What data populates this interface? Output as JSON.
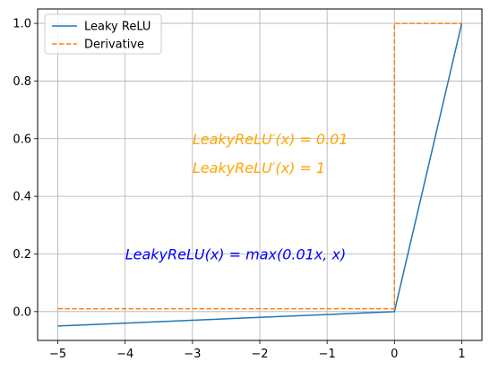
{
  "chart_data": {
    "type": "line",
    "xlim": [
      -5.3,
      1.3
    ],
    "ylim": [
      -0.1,
      1.05
    ],
    "x_ticks": [
      "−5",
      "−4",
      "−3",
      "−2",
      "−1",
      "0",
      "1"
    ],
    "x_tick_values": [
      -5,
      -4,
      -3,
      -2,
      -1,
      0,
      1
    ],
    "y_ticks": [
      "0.0",
      "0.2",
      "0.4",
      "0.6",
      "0.8",
      "1.0"
    ],
    "y_tick_values": [
      0.0,
      0.2,
      0.4,
      0.6,
      0.8,
      1.0
    ],
    "grid": true,
    "legend_position": "top-left",
    "series": [
      {
        "name": "Leaky ReLU",
        "color": "#1f77b4",
        "style": "solid",
        "x": [
          -5,
          0,
          1
        ],
        "y": [
          -0.05,
          0.0,
          1.0
        ]
      },
      {
        "name": "Derivative",
        "color": "#ff7f0e",
        "style": "dashed",
        "x": [
          -5,
          0,
          0,
          1
        ],
        "y": [
          0.01,
          0.01,
          1.0,
          1.0
        ]
      }
    ],
    "annotations": [
      {
        "text": "LeakyReLU′(x) = 0.01",
        "x": -3,
        "y": 0.6,
        "color": "#ffa500"
      },
      {
        "text": "LeakyReLU′(x) = 1",
        "x": -3,
        "y": 0.5,
        "color": "#ffa500"
      },
      {
        "text": "LeakyReLU(x) = max(0.01x, x)",
        "x": -4,
        "y": 0.2,
        "color": "#0000ff"
      }
    ]
  }
}
